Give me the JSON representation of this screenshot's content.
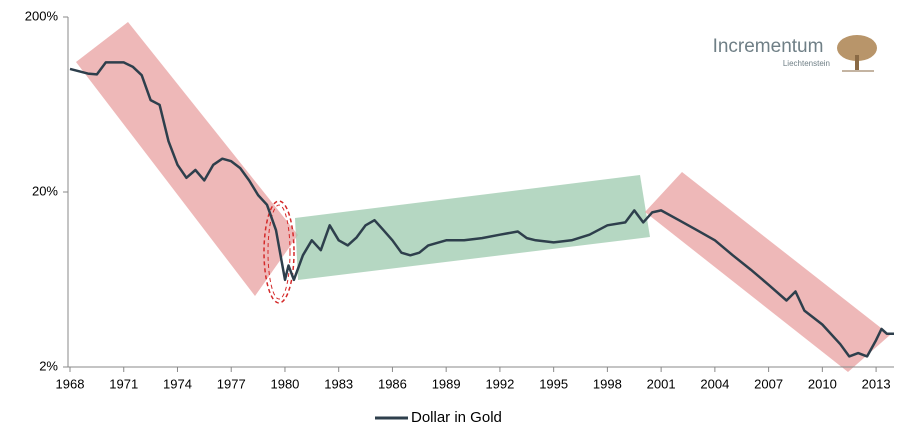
{
  "chart_data": {
    "type": "line",
    "logo": {
      "name": "Incrementum",
      "subtitle": "Liechtenstein"
    },
    "x": [
      1968,
      1969,
      1969.5,
      1970,
      1971,
      1971.5,
      1972,
      1972.5,
      1973,
      1973.5,
      1974,
      1974.5,
      1975,
      1975.5,
      1976,
      1976.5,
      1977,
      1977.5,
      1978,
      1978.5,
      1979,
      1979.5,
      1980,
      1980.2,
      1980.5,
      1981,
      1981.5,
      1982,
      1982.5,
      1983,
      1983.5,
      1984,
      1984.5,
      1985,
      1985.5,
      1986,
      1986.5,
      1987,
      1987.5,
      1988,
      1989,
      1990,
      1991,
      1992,
      1993,
      1993.5,
      1994,
      1995,
      1996,
      1997,
      1998,
      1999,
      1999.5,
      2000,
      2000.5,
      2001,
      2002,
      2003,
      2004,
      2005,
      2006,
      2007,
      2008,
      2008.5,
      2009,
      2010,
      2011,
      2011.5,
      2012,
      2012.5,
      2013,
      2013.3,
      2013.6,
      2014
    ],
    "series": [
      {
        "name": "Dollar in Gold",
        "color": "#2e3f4c",
        "values": [
          101,
          95,
          94,
          110,
          110,
          104,
          93,
          67,
          63,
          39,
          28.6,
          24.1,
          26.7,
          23.3,
          28.6,
          31,
          30,
          27.4,
          23.3,
          19.2,
          16.9,
          12.1,
          6.3,
          7.6,
          6.3,
          8.7,
          10.6,
          9.3,
          12.9,
          10.6,
          9.9,
          11,
          12.9,
          13.8,
          12.1,
          10.6,
          9,
          8.7,
          9,
          9.9,
          10.6,
          10.6,
          10.9,
          11.4,
          11.9,
          10.9,
          10.6,
          10.3,
          10.6,
          11.4,
          12.9,
          13.4,
          15.7,
          13.4,
          15.3,
          15.7,
          13.8,
          12.1,
          10.6,
          8.7,
          7.2,
          5.9,
          4.8,
          5.4,
          4.2,
          3.5,
          2.7,
          2.3,
          2.4,
          2.3,
          2.85,
          3.3,
          3.1,
          3.1
        ]
      }
    ],
    "xlim": [
      1968,
      2014
    ],
    "xticks": [
      1968,
      1971,
      1974,
      1977,
      1980,
      1983,
      1986,
      1989,
      1992,
      1995,
      1998,
      2001,
      2004,
      2007,
      2010,
      2013
    ],
    "ylim": [
      2,
      200
    ],
    "yticks": [
      {
        "value": 2,
        "label": "2%"
      },
      {
        "value": 20,
        "label": "20%"
      },
      {
        "value": 200,
        "label": "200%"
      }
    ],
    "log_y": true,
    "legend": "bottom"
  }
}
